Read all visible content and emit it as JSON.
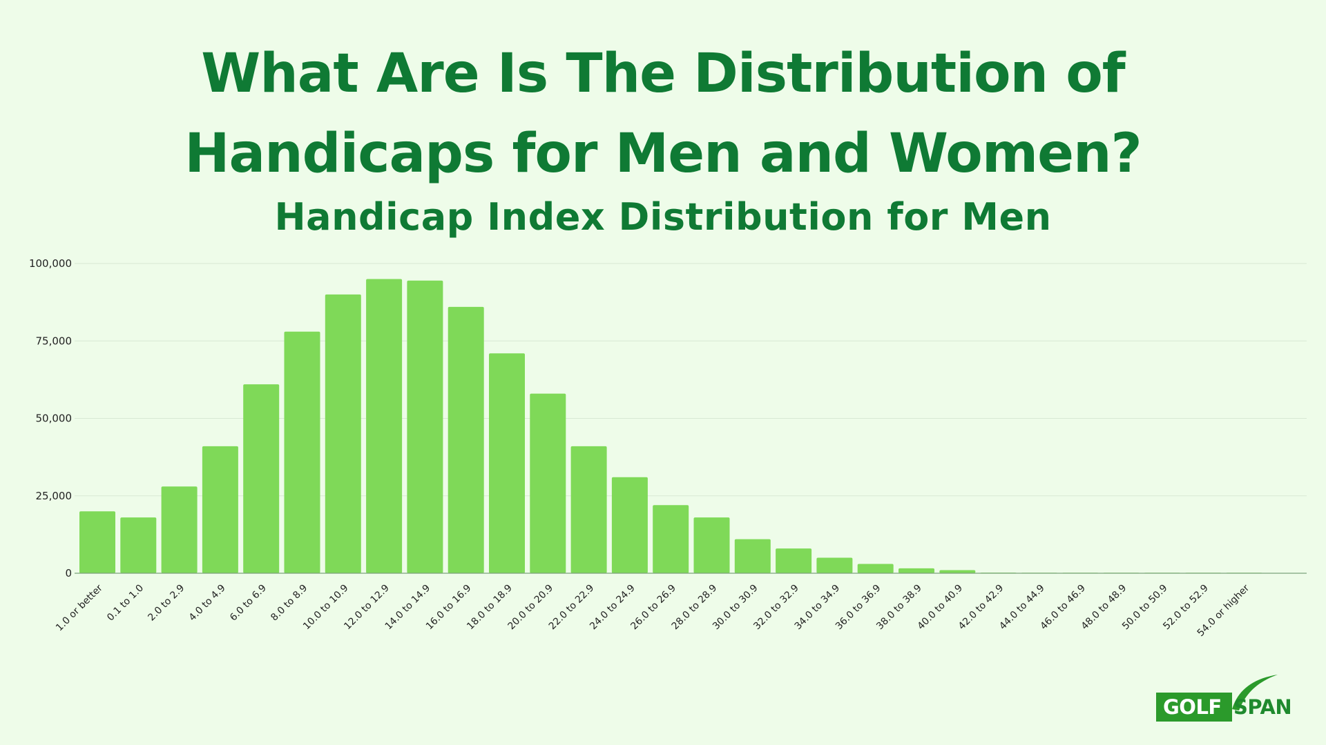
{
  "header": {
    "title_line_1": "What Are Is The Distribution of",
    "title_line_2": "Handicaps for Men and Women?",
    "subtitle": "Handicap Index Distribution for Men"
  },
  "colors": {
    "title": "#0f7a34",
    "bar": "#7fd958",
    "background": "#eefce9",
    "grid": "#d8e8d4",
    "axis": "#7ca37c"
  },
  "chart_data": {
    "type": "bar",
    "title": "Handicap Index Distribution for Men",
    "xlabel": "",
    "ylabel": "",
    "ylim": [
      0,
      100000
    ],
    "y_ticks": [
      0,
      25000,
      50000,
      75000,
      100000
    ],
    "y_tick_labels": [
      "0",
      "25,000",
      "50,000",
      "75,000",
      "100,000"
    ],
    "grid": true,
    "legend": "none",
    "categories": [
      "1.0 or better",
      "0.1 to 1.0",
      "2.0 to 2.9",
      "4.0 to 4.9",
      "6.0 to 6.9",
      "8.0 to 8.9",
      "10.0 to 10.9",
      "12.0 to 12.9",
      "14.0 to 14.9",
      "16.0 to 16.9",
      "18.0 to 18.9",
      "20.0 to 20.9",
      "22.0 to 22.9",
      "24.0 to 24.9",
      "26.0 to 26.9",
      "28.0 to 28.9",
      "30.0 to 30.9",
      "32.0 to 32.9",
      "34.0 to 34.9",
      "36.0 to 36.9",
      "38.0 to 38.9",
      "40.0 to 40.9",
      "42.0 to 42.9",
      "44.0 to 44.9",
      "46.0 to 46.9",
      "48.0 to 48.9",
      "50.0 to 50.9",
      "52.0 to 52.9",
      "54.0 or higher"
    ],
    "values": [
      20000,
      18000,
      28000,
      41000,
      61000,
      78000,
      90000,
      95000,
      94500,
      86000,
      71000,
      58000,
      41000,
      31000,
      22000,
      18000,
      11000,
      8000,
      5000,
      3000,
      1600,
      1000,
      200,
      100,
      60,
      30,
      20,
      10,
      10
    ]
  },
  "logo": {
    "left_text": "GOLF",
    "right_text": "SPAN"
  }
}
